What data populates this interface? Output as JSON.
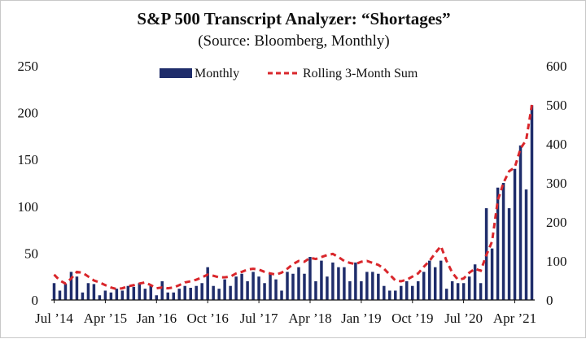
{
  "colors": {
    "bar": "#1f2d6b",
    "line": "#d9262b",
    "axis": "#111111"
  },
  "chart_data": {
    "type": "bar",
    "title": "S&P 500 Transcript Analyzer: “Shortages”",
    "subtitle": "(Source: Bloomberg, Monthly)",
    "xlabel": "",
    "ylabel": "",
    "ylim": [
      0,
      250
    ],
    "y2lim": [
      0,
      600
    ],
    "y_ticks": [
      0,
      50,
      100,
      150,
      200,
      250
    ],
    "y2_ticks": [
      0,
      100,
      200,
      300,
      400,
      500,
      600
    ],
    "x_tick_labels": [
      "Jul ’14",
      "Apr ’15",
      "Jan ’16",
      "Oct ’16",
      "Jul ’17",
      "Apr ’18",
      "Jan ’19",
      "Oct ’19",
      "Jul ’20",
      "Apr ’21"
    ],
    "x_tick_index": [
      0,
      9,
      18,
      27,
      36,
      45,
      54,
      63,
      72,
      81
    ],
    "legend_position": "top-center",
    "grid": false,
    "series": [
      {
        "name": "Monthly",
        "type": "bar",
        "axis": "left",
        "values": [
          18,
          10,
          17,
          30,
          25,
          8,
          18,
          17,
          5,
          10,
          8,
          12,
          10,
          15,
          14,
          18,
          12,
          15,
          5,
          20,
          8,
          8,
          12,
          15,
          13,
          15,
          18,
          35,
          15,
          12,
          22,
          15,
          25,
          28,
          20,
          30,
          25,
          18,
          28,
          22,
          10,
          30,
          28,
          35,
          28,
          46,
          20,
          42,
          25,
          40,
          35,
          35,
          20,
          40,
          20,
          30,
          30,
          28,
          15,
          10,
          10,
          15,
          20,
          15,
          20,
          30,
          42,
          35,
          42,
          12,
          20,
          18,
          18,
          25,
          38,
          18,
          98,
          55,
          120,
          125,
          98,
          140,
          165,
          118,
          208
        ]
      },
      {
        "name": "Rolling 3-Month Sum",
        "type": "line",
        "axis": "right",
        "values": [
          65,
          50,
          42,
          55,
          72,
          70,
          60,
          50,
          45,
          38,
          32,
          28,
          30,
          35,
          38,
          42,
          45,
          38,
          30,
          32,
          30,
          32,
          38,
          45,
          48,
          52,
          58,
          65,
          62,
          58,
          58,
          60,
          68,
          72,
          78,
          80,
          78,
          72,
          68,
          65,
          70,
          80,
          92,
          100,
          98,
          108,
          105,
          110,
          115,
          118,
          110,
          100,
          95,
          92,
          98,
          100,
          95,
          90,
          80,
          65,
          50,
          48,
          52,
          60,
          68,
          85,
          100,
          120,
          138,
          100,
          70,
          52,
          55,
          70,
          80,
          75,
          115,
          150,
          255,
          300,
          330,
          340,
          388,
          410,
          500
        ]
      }
    ]
  }
}
